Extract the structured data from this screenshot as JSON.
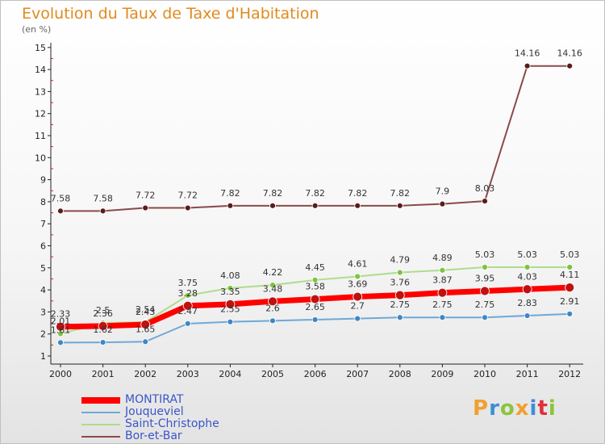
{
  "title": "Evolution du Taux de Taxe d'Habitation",
  "unit_label": "(en %)",
  "brand": {
    "text": "Proxiti",
    "letters": [
      "P",
      "r",
      "o",
      "x",
      "i",
      "t",
      "i"
    ],
    "colors": [
      "#f0a030",
      "#3a8fd8",
      "#8cc43c",
      "#f0a030",
      "#3a8fd8",
      "#e0303a",
      "#8cc43c"
    ]
  },
  "chart_data": {
    "type": "line",
    "title": "Evolution du Taux de Taxe d'Habitation",
    "ylabel": "(en %)",
    "xlabel": "",
    "ylim": [
      0.5,
      15
    ],
    "yticks": [
      1,
      2,
      3,
      4,
      5,
      6,
      7,
      8,
      9,
      10,
      11,
      12,
      13,
      14,
      15
    ],
    "categories": [
      "2000",
      "2001",
      "2002",
      "2003",
      "2004",
      "2005",
      "2006",
      "2007",
      "2008",
      "2009",
      "2010",
      "2011",
      "2012"
    ],
    "grid": false,
    "legend_position": "bottom-left",
    "series": [
      {
        "name": "MONTIRAT",
        "color": "#ff0000",
        "point_color": "#c01010",
        "width": 7,
        "values": [
          2.33,
          2.36,
          2.43,
          3.28,
          3.35,
          3.48,
          3.58,
          3.69,
          3.76,
          3.87,
          3.95,
          4.03,
          4.11
        ],
        "labels": [
          "2.33",
          "2.36",
          "2.43",
          "3.28",
          "3.35",
          "3.48",
          "3.58",
          "3.69",
          "3.76",
          "3.87",
          "3.95",
          "4.03",
          "4.11"
        ]
      },
      {
        "name": "Jouqueviel",
        "color": "#6fa8d6",
        "point_color": "#3f86c6",
        "width": 2,
        "values": [
          1.61,
          1.62,
          1.65,
          2.47,
          2.55,
          2.6,
          2.65,
          2.7,
          2.75,
          2.75,
          2.75,
          2.83,
          2.91
        ],
        "labels": [
          "1.61",
          "1.62",
          "1.65",
          "2.47",
          "2.55",
          "2.6",
          "2.65",
          "2.7",
          "2.75",
          "2.75",
          "2.75",
          "2.83",
          "2.91"
        ]
      },
      {
        "name": "Saint-Christophe",
        "color": "#aedc8c",
        "point_color": "#7cc43c",
        "width": 2,
        "values": [
          2.01,
          2.5,
          2.54,
          3.75,
          4.08,
          4.22,
          4.45,
          4.61,
          4.79,
          4.89,
          5.03,
          5.03,
          5.03
        ],
        "labels": [
          "2.01",
          "2.5",
          "2.54",
          "3.75",
          "4.08",
          "4.22",
          "4.45",
          "4.61",
          "4.79",
          "4.89",
          "5.03",
          "5.03",
          "5.03"
        ]
      },
      {
        "name": "Bor-et-Bar",
        "color": "#8a4a4a",
        "point_color": "#5a1c1c",
        "width": 2,
        "values": [
          7.58,
          7.58,
          7.72,
          7.72,
          7.82,
          7.82,
          7.82,
          7.82,
          7.82,
          7.9,
          8.03,
          14.16,
          14.16
        ],
        "labels": [
          "7.58",
          "7.58",
          "7.72",
          "7.72",
          "7.82",
          "7.82",
          "7.82",
          "7.82",
          "7.82",
          "7.9",
          "8.03",
          "14.16",
          "14.16"
        ]
      }
    ]
  }
}
